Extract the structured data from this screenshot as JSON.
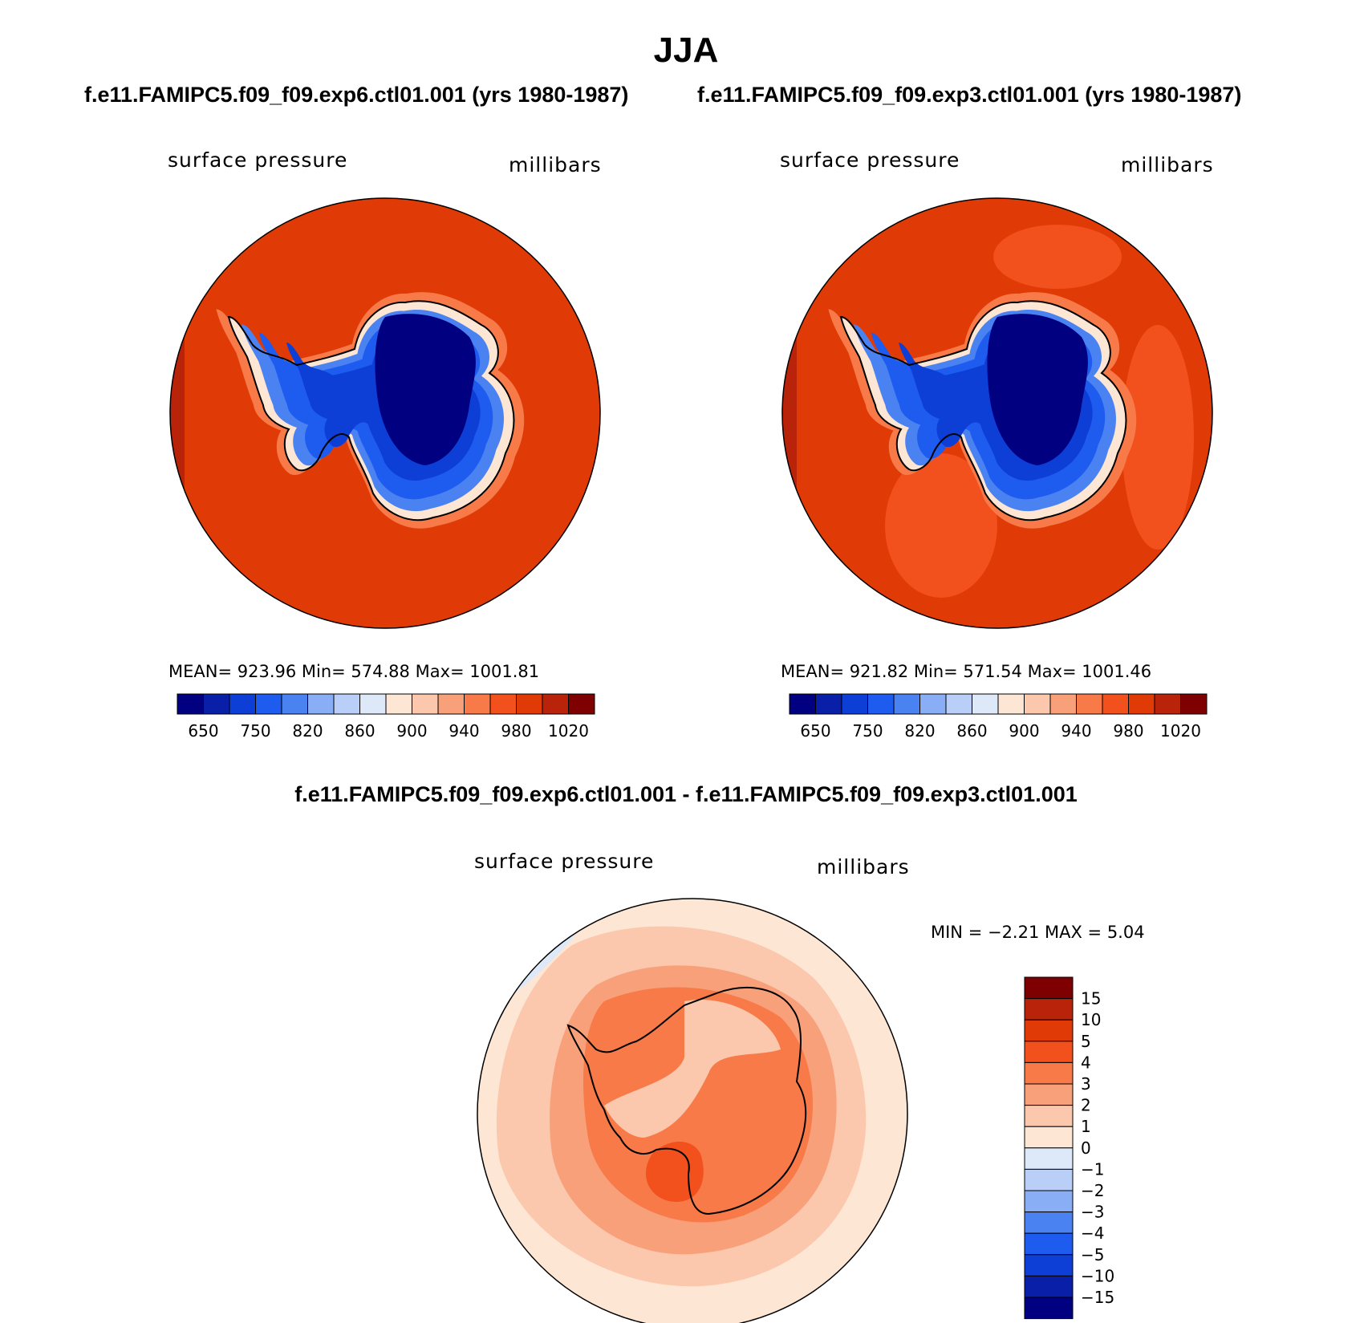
{
  "title": "JJA",
  "panels": [
    {
      "case": "f.e11.FAMIPC5.f09_f09.exp6.ctl01.001 (yrs 1980-1987)",
      "left_label": "surface pressure",
      "right_label": "millibars",
      "stats": "MEAN= 923.96   Min= 574.88   Max= 1001.81",
      "mean": 923.96,
      "min": 574.88,
      "max": 1001.81,
      "ocean_color": "#e03a06"
    },
    {
      "case": "f.e11.FAMIPC5.f09_f09.exp3.ctl01.001 (yrs 1980-1987)",
      "left_label": "surface pressure",
      "right_label": "millibars",
      "stats": "MEAN= 921.82   Min= 571.54   Max= 1001.46",
      "mean": 921.82,
      "min": 571.54,
      "max": 1001.46,
      "ocean_color": "#e03a06"
    }
  ],
  "abs_colorbar": {
    "colors": [
      "#000080",
      "#0a1fa8",
      "#0d3fd6",
      "#1e5cf0",
      "#4a82f2",
      "#8aaef5",
      "#b9cff8",
      "#dde9f9",
      "#fde6d3",
      "#fbc7ad",
      "#f8a07a",
      "#f77a48",
      "#f2501c",
      "#e03a06",
      "#b8230a",
      "#7e0000"
    ],
    "labels": [
      "650",
      "750",
      "820",
      "860",
      "900",
      "940",
      "980",
      "1020"
    ]
  },
  "diff": {
    "title": "f.e11.FAMIPC5.f09_f09.exp6.ctl01.001 - f.e11.FAMIPC5.f09_f09.exp3.ctl01.001",
    "left_label": "surface pressure",
    "right_label": "millibars",
    "minmax": "MIN =   −2.21  MAX =    5.04",
    "min": -2.21,
    "max": 5.04,
    "colorbar": {
      "colors": [
        "#7e0000",
        "#b8230a",
        "#e03a06",
        "#f2501c",
        "#f77a48",
        "#f8a07a",
        "#fbc7ad",
        "#fde6d3",
        "#dde9f9",
        "#b9cff8",
        "#8aaef5",
        "#4a82f2",
        "#1e5cf0",
        "#0d3fd6",
        "#0a1fa8",
        "#000080"
      ],
      "labels": [
        "15",
        "10",
        "5",
        "4",
        "3",
        "2",
        "1",
        "0",
        "−1",
        "−2",
        "−3",
        "−4",
        "−5",
        "−10",
        "−15"
      ]
    }
  }
}
